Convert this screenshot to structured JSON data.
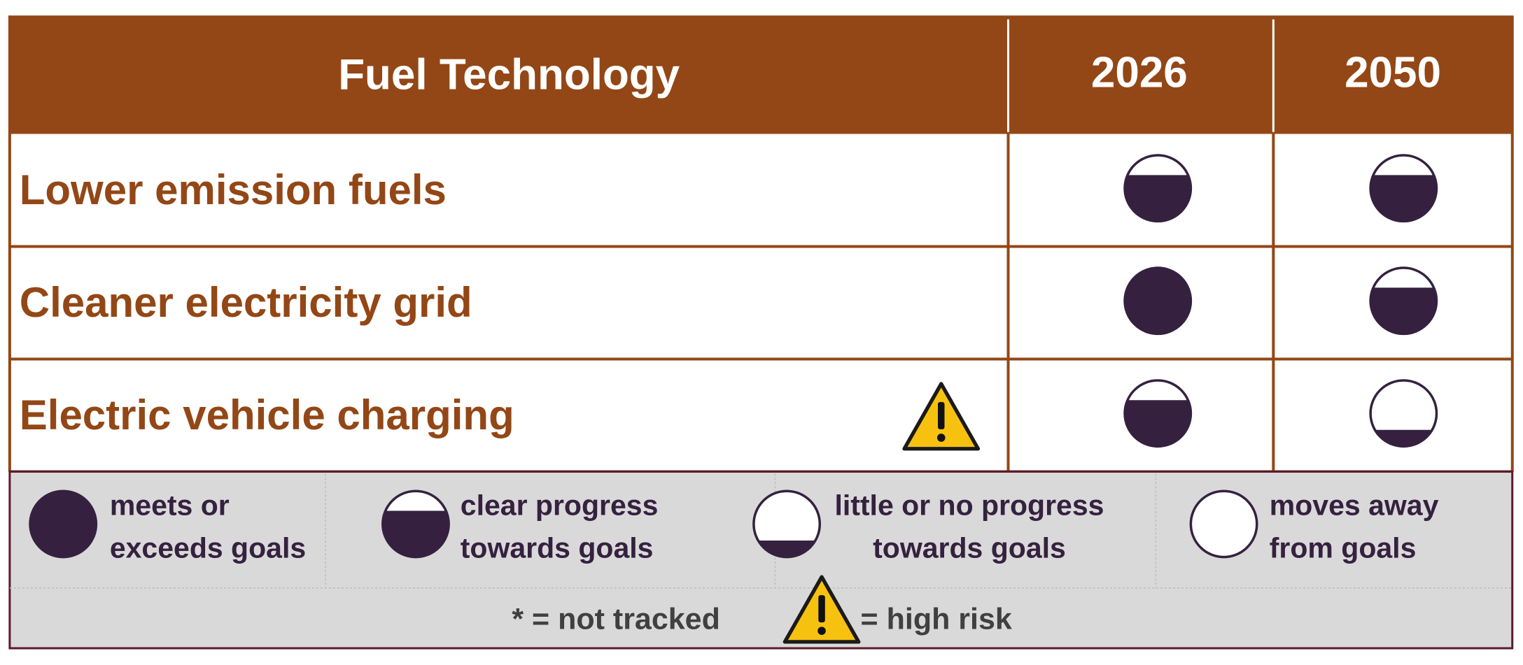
{
  "header": {
    "title": "Fuel Technology",
    "years": [
      "2026",
      "2050"
    ]
  },
  "rows": [
    {
      "label": "Lower emission fuels",
      "high_risk": false,
      "fill": [
        0.7,
        0.7
      ]
    },
    {
      "label": "Cleaner electricity grid",
      "high_risk": false,
      "fill": [
        1,
        0.7
      ]
    },
    {
      "label": "Electric vehicle charging",
      "high_risk": true,
      "fill": [
        0.7,
        0.25
      ]
    }
  ],
  "legend": [
    {
      "fill": 1,
      "lines": [
        "meets or",
        "exceeds goals"
      ]
    },
    {
      "fill": 0.7,
      "lines": [
        "clear progress",
        "towards goals"
      ]
    },
    {
      "fill": 0.25,
      "lines": [
        "little or no progress",
        "towards goals"
      ]
    },
    {
      "fill": 0,
      "lines": [
        "moves away",
        "from goals"
      ]
    }
  ],
  "notes": {
    "not_tracked": "* = not tracked",
    "high_risk": "= high risk"
  }
}
